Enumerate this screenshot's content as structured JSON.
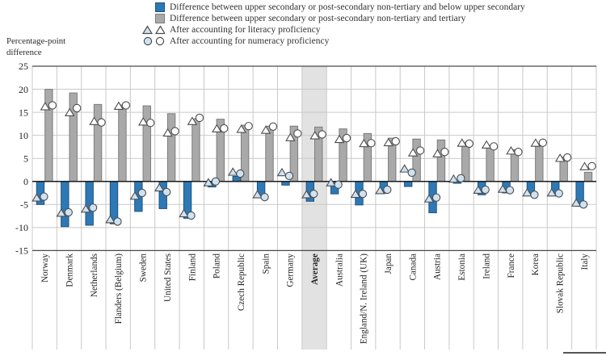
{
  "ylabel_line1": "Percentage-point",
  "ylabel_line2": "difference",
  "legend": {
    "items": [
      {
        "marker": "blue-square",
        "label": "Difference between upper secondary or post-secondary non-tertiary and below upper secondary"
      },
      {
        "marker": "gray-square",
        "label": "Difference between upper secondary or post-secondary non-tertiary and tertiary"
      },
      {
        "marker": "triangle-pair",
        "label": "After accounting for literacy proficiency"
      },
      {
        "marker": "circle-pair",
        "label": "After accounting for numeracy proficiency"
      }
    ]
  },
  "colors": {
    "bar_blue": "#2e79b5",
    "bar_blue_border": "#1d5380",
    "bar_gray": "#a9a9a9",
    "bar_gray_border": "#7c7c7c",
    "marker_light_fill": "#cfe2f2",
    "marker_white_fill": "#ffffff",
    "marker_stroke": "#4d4d4d",
    "grid": "#c9c9c9",
    "axis": "#4a4a4a",
    "zero_line": "#1a1a1a",
    "average_band": "#e2e2e2",
    "text": "#252525"
  },
  "chart_data": {
    "type": "bar",
    "title": "",
    "ylabel": "Percentage-point difference",
    "ylim": [
      -15,
      25
    ],
    "yticks": [
      25,
      20,
      15,
      10,
      5,
      0,
      -5,
      -10,
      -15
    ],
    "grid": true,
    "legend_position": "top",
    "highlight_category": "Average",
    "categories": [
      "Norway",
      "Denmark",
      "Netherlands",
      "Flanders (Belgium)",
      "Sweden",
      "United States",
      "Finland",
      "Poland",
      "Czech Republic",
      "Spain",
      "Germany",
      "Average",
      "Australia",
      "England/N. Ireland (UK)",
      "Japan",
      "Canada",
      "Austria",
      "Estonia",
      "Ireland",
      "France",
      "Korea",
      "Slovak Republic",
      "Italy"
    ],
    "series": [
      {
        "name": "Difference between upper secondary or post-secondary non-tertiary and below upper secondary",
        "marker": "bar-blue",
        "values": [
          -5.0,
          -9.8,
          -9.5,
          -9.2,
          -6.5,
          -5.9,
          -8.0,
          -1.2,
          1.1,
          -3.3,
          -0.8,
          -4.3,
          -2.7,
          -5.1,
          -2.6,
          -1.1,
          -6.8,
          -0.4,
          -2.9,
          -2.5,
          -3.1,
          -2.5,
          -5.4
        ]
      },
      {
        "name": "Difference between upper secondary or post-secondary non-tertiary and tertiary",
        "marker": "bar-gray",
        "values": [
          20.0,
          19.2,
          16.7,
          16.6,
          16.4,
          14.7,
          13.6,
          13.5,
          12.2,
          12.0,
          12.0,
          11.8,
          11.4,
          10.4,
          9.4,
          9.2,
          9.0,
          8.5,
          7.8,
          6.9,
          7.8,
          5.3,
          2.0
        ]
      },
      {
        "name": "Tertiary difference after accounting for literacy proficiency",
        "marker": "triangle-white",
        "values": [
          16.2,
          14.9,
          13.0,
          16.3,
          12.9,
          10.5,
          13.0,
          11.4,
          11.3,
          11.1,
          9.5,
          9.9,
          9.1,
          8.2,
          8.4,
          6.2,
          6.0,
          8.3,
          7.9,
          6.6,
          8.3,
          5.0,
          3.2
        ]
      },
      {
        "name": "Tertiary difference after accounting for numeracy proficiency",
        "marker": "circle-white",
        "values": [
          16.5,
          15.9,
          12.8,
          16.5,
          12.7,
          10.9,
          13.8,
          11.5,
          12.0,
          11.9,
          10.4,
          10.2,
          9.4,
          8.3,
          8.7,
          6.7,
          6.4,
          8.2,
          7.6,
          6.4,
          8.4,
          5.2,
          3.3
        ]
      },
      {
        "name": "Below upper secondary difference after accounting for literacy proficiency",
        "marker": "triangle-light",
        "values": [
          -3.6,
          -6.9,
          -6.0,
          -8.3,
          -3.2,
          -1.4,
          -7.0,
          -0.3,
          2.0,
          -2.9,
          1.9,
          -2.9,
          -0.3,
          -2.8,
          -2.0,
          2.7,
          -3.8,
          0.5,
          -1.9,
          -1.7,
          -2.5,
          -2.5,
          -4.7
        ]
      },
      {
        "name": "Below upper secondary difference after accounting for numeracy proficiency",
        "marker": "circle-light",
        "values": [
          -3.3,
          -6.7,
          -5.7,
          -8.7,
          -2.5,
          -2.3,
          -7.4,
          0.0,
          1.7,
          -3.4,
          1.2,
          -2.7,
          -0.7,
          -2.7,
          -1.8,
          1.9,
          -3.5,
          0.7,
          -1.8,
          -1.9,
          -2.9,
          -2.6,
          -5.0
        ]
      }
    ]
  }
}
